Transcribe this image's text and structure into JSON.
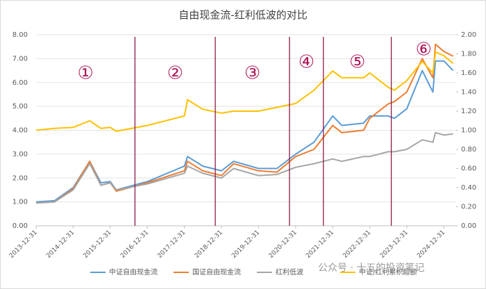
{
  "chart_data": {
    "type": "line",
    "title": "自由现金流-红利低波的对比",
    "x": [
      "2013-12-31",
      "2014-06-30",
      "2014-12-31",
      "2015-06-12",
      "2015-09-30",
      "2015-12-31",
      "2016-02-29",
      "2016-12-31",
      "2017-12-31",
      "2018-01-31",
      "2018-06-30",
      "2018-12-31",
      "2019-04-30",
      "2019-12-31",
      "2020-06-30",
      "2020-12-31",
      "2021-06-30",
      "2021-12-31",
      "2022-03-31",
      "2022-10-31",
      "2022-12-31",
      "2023-06-30",
      "2023-08-31",
      "2023-12-31",
      "2024-05-31",
      "2024-09-13",
      "2024-10-08",
      "2024-12-31",
      "2025-03-31"
    ],
    "series": [
      {
        "name": "中证自由现金流",
        "color": "#5b9bd5",
        "values": [
          1.0,
          1.05,
          1.6,
          2.7,
          1.8,
          1.85,
          1.5,
          1.85,
          2.5,
          2.9,
          2.5,
          2.3,
          2.7,
          2.4,
          2.4,
          3.0,
          3.5,
          4.6,
          4.2,
          4.3,
          4.6,
          4.6,
          4.5,
          4.9,
          6.5,
          5.6,
          6.9,
          6.9,
          6.5
        ]
      },
      {
        "name": "国证自由现金流",
        "color": "#ed7d31",
        "values": [
          0.95,
          1.0,
          1.55,
          2.7,
          1.7,
          1.8,
          1.45,
          1.8,
          2.3,
          2.7,
          2.3,
          2.1,
          2.6,
          2.3,
          2.25,
          2.9,
          3.2,
          4.2,
          3.9,
          4.0,
          4.5,
          5.1,
          5.2,
          5.6,
          7.0,
          6.2,
          7.6,
          7.3,
          7.1
        ]
      },
      {
        "name": "红利低波",
        "color": "#a5a5a5",
        "values": [
          0.95,
          1.0,
          1.5,
          2.6,
          1.7,
          1.8,
          1.5,
          1.75,
          2.2,
          2.5,
          2.2,
          2.0,
          2.4,
          2.1,
          2.15,
          2.45,
          2.6,
          2.8,
          2.7,
          2.9,
          2.9,
          3.1,
          3.1,
          3.2,
          3.6,
          3.5,
          3.9,
          3.8,
          3.85
        ]
      },
      {
        "name": "中证/红利累积超额",
        "color": "#ffc000",
        "axis": "y2",
        "values": [
          1.0,
          1.02,
          1.03,
          1.1,
          1.02,
          1.03,
          0.99,
          1.05,
          1.15,
          1.32,
          1.22,
          1.18,
          1.2,
          1.2,
          1.24,
          1.28,
          1.42,
          1.62,
          1.55,
          1.55,
          1.6,
          1.45,
          1.42,
          1.52,
          1.72,
          1.6,
          1.82,
          1.78,
          1.7
        ]
      }
    ],
    "xlim": [
      "2013-12-31",
      "2025-04-30"
    ],
    "xticks": [
      "2013-12-31",
      "2014-12-31",
      "2015-12-31",
      "2016-12-31",
      "2017-12-31",
      "2018-12-31",
      "2019-12-31",
      "2020-12-31",
      "2021-12-31",
      "2022-12-31",
      "2023-12-31",
      "2024-12-31"
    ],
    "ylim": [
      0,
      8
    ],
    "yticks": [
      {
        "value": 0,
        "label": "0.00"
      },
      {
        "value": 1,
        "label": "1.00"
      },
      {
        "value": 2,
        "label": "2.00"
      },
      {
        "value": 3,
        "label": "3.00"
      },
      {
        "value": 4,
        "label": "4.00"
      },
      {
        "value": 5,
        "label": "5.00"
      },
      {
        "value": 6,
        "label": "6.00"
      },
      {
        "value": 7,
        "label": "7.00"
      },
      {
        "value": 8,
        "label": "8.00"
      }
    ],
    "y2lim": [
      0,
      2
    ],
    "y2ticks": [
      {
        "value": 0,
        "label": "0.00"
      },
      {
        "value": 0.2,
        "label": "0.20"
      },
      {
        "value": 0.4,
        "label": "0.40"
      },
      {
        "value": 0.6,
        "label": "0.60"
      },
      {
        "value": 0.8,
        "label": "0.80"
      },
      {
        "value": 1,
        "label": "1.00"
      },
      {
        "value": 1.2,
        "label": "1.20"
      },
      {
        "value": 1.4,
        "label": "1.40"
      },
      {
        "value": 1.6,
        "label": "1.60"
      },
      {
        "value": 1.8,
        "label": "1.80"
      },
      {
        "value": 2,
        "label": "2.00"
      }
    ],
    "dividers": [
      "2016-08-31",
      "2018-10-31",
      "2020-10-31",
      "2021-09-30",
      "2023-07-31"
    ],
    "divider_color": "#8b1a4a",
    "annotations": [
      "①",
      "②",
      "③",
      "④",
      "⑤",
      "⑥"
    ],
    "watermark": "公众号 · 十五的投资笔记",
    "legend": "bottom"
  }
}
